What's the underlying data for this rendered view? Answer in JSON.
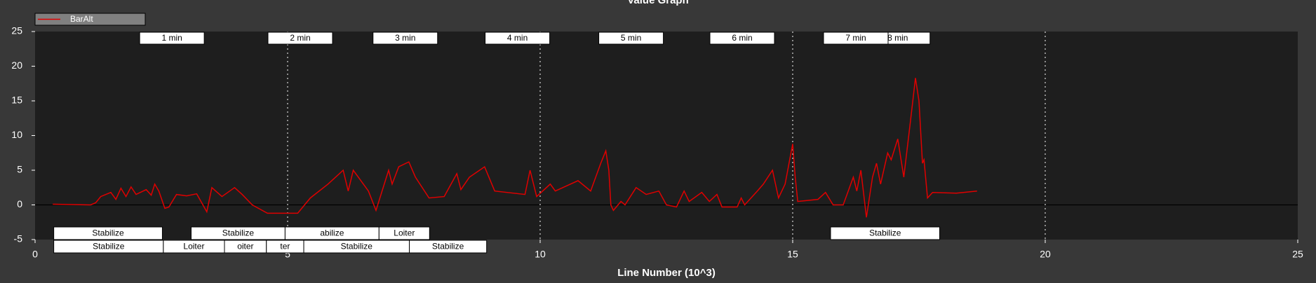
{
  "chart_data": {
    "type": "line",
    "title": "Value Graph",
    "x_label": "Line Number (10^3)",
    "xlim": [
      0,
      25
    ],
    "xticks": [
      0,
      5,
      10,
      15,
      20,
      25
    ],
    "ylim": [
      -5,
      25
    ],
    "yticks": [
      -5,
      0,
      5,
      10,
      15,
      20,
      25
    ],
    "grid": true,
    "legend": "top-left",
    "x": [
      0.35,
      1.1,
      1.2,
      1.3,
      1.5,
      1.6,
      1.7,
      1.8,
      1.9,
      2.0,
      2.2,
      2.3,
      2.37,
      2.45,
      2.57,
      2.65,
      2.8,
      3.0,
      3.2,
      3.4,
      3.5,
      3.7,
      3.95,
      4.1,
      4.3,
      4.6,
      5.2,
      5.45,
      5.8,
      6.1,
      6.2,
      6.3,
      6.6,
      6.75,
      7.0,
      7.07,
      7.2,
      7.4,
      7.53,
      7.8,
      8.1,
      8.35,
      8.43,
      8.6,
      8.9,
      9.1,
      9.7,
      9.8,
      9.93,
      10.2,
      10.3,
      10.75,
      11.0,
      11.2,
      11.3,
      11.36,
      11.4,
      11.45,
      11.6,
      11.68,
      11.9,
      12.1,
      12.35,
      12.5,
      12.7,
      12.85,
      12.95,
      13.2,
      13.35,
      13.5,
      13.6,
      13.9,
      13.98,
      14.05,
      14.3,
      14.42,
      14.6,
      14.72,
      14.85,
      15.0,
      15.05,
      15.1,
      15.5,
      15.65,
      15.8,
      16.0,
      16.1,
      16.2,
      16.27,
      16.35,
      16.46,
      16.58,
      16.66,
      16.74,
      16.88,
      16.95,
      17.08,
      17.2,
      17.33,
      17.43,
      17.5,
      17.57,
      17.6,
      17.67,
      17.77,
      18.24,
      18.65
    ],
    "series": [
      {
        "name": "BarAlt",
        "color": "#e00000",
        "values": [
          0.1,
          0,
          0.3,
          1.2,
          1.8,
          0.8,
          2.4,
          1.2,
          2.6,
          1.5,
          2.2,
          1.4,
          3,
          2,
          -0.5,
          -0.3,
          1.5,
          1.3,
          1.6,
          -1,
          2.5,
          1.2,
          2.5,
          1.5,
          0,
          -1.2,
          -1.2,
          1,
          3,
          5,
          2,
          5,
          2,
          -0.8,
          5,
          3,
          5.5,
          6.2,
          4,
          1,
          1.2,
          4.5,
          2.2,
          4,
          5.5,
          2,
          1.5,
          5,
          1.2,
          3,
          2,
          3.5,
          2,
          6,
          7.8,
          5,
          0,
          -0.8,
          0.5,
          0,
          2.5,
          1.5,
          2,
          0,
          -0.3,
          2,
          0.5,
          1.8,
          0.5,
          1.5,
          -0.3,
          -0.3,
          1,
          0,
          2,
          3,
          5,
          1,
          3,
          8.8,
          4,
          0.5,
          0.8,
          1.8,
          0,
          0,
          2,
          4,
          2,
          5,
          -1.8,
          4,
          6,
          3,
          7.5,
          6.5,
          9.5,
          4,
          12,
          18.3,
          15,
          6,
          6.5,
          1,
          1.8,
          1.7,
          2
        ]
      }
    ],
    "time_markers": [
      {
        "x": 2.71,
        "label": "1 min"
      },
      {
        "x": 5.25,
        "label": "2 min"
      },
      {
        "x": 7.33,
        "label": "3 min"
      },
      {
        "x": 9.55,
        "label": "4 min"
      },
      {
        "x": 11.8,
        "label": "5 min"
      },
      {
        "x": 14.0,
        "label": "6 min"
      },
      {
        "x": 16.25,
        "label": "7 min"
      },
      {
        "x": 17.08,
        "label": "8 min"
      }
    ],
    "mode_rows": [
      [
        {
          "start": 0.37,
          "end": 2.52,
          "label": "Stabilize"
        },
        {
          "start": 3.09,
          "end": 4.95,
          "label": "Stabilize"
        },
        {
          "start": 4.95,
          "end": 6.81,
          "label": "abilize"
        },
        {
          "start": 6.81,
          "end": 7.81,
          "label": "Loiter"
        },
        {
          "start": 15.75,
          "end": 17.91,
          "label": "Stabilize"
        }
      ],
      [
        {
          "start": 0.37,
          "end": 2.54,
          "label": "Stabilize"
        },
        {
          "start": 2.54,
          "end": 3.75,
          "label": "Loiter"
        },
        {
          "start": 3.75,
          "end": 4.58,
          "label": "oiter"
        },
        {
          "start": 4.58,
          "end": 5.32,
          "label": "ter"
        },
        {
          "start": 5.32,
          "end": 7.41,
          "label": "Stabilize"
        },
        {
          "start": 7.41,
          "end": 8.94,
          "label": "Stabilize"
        }
      ]
    ]
  }
}
